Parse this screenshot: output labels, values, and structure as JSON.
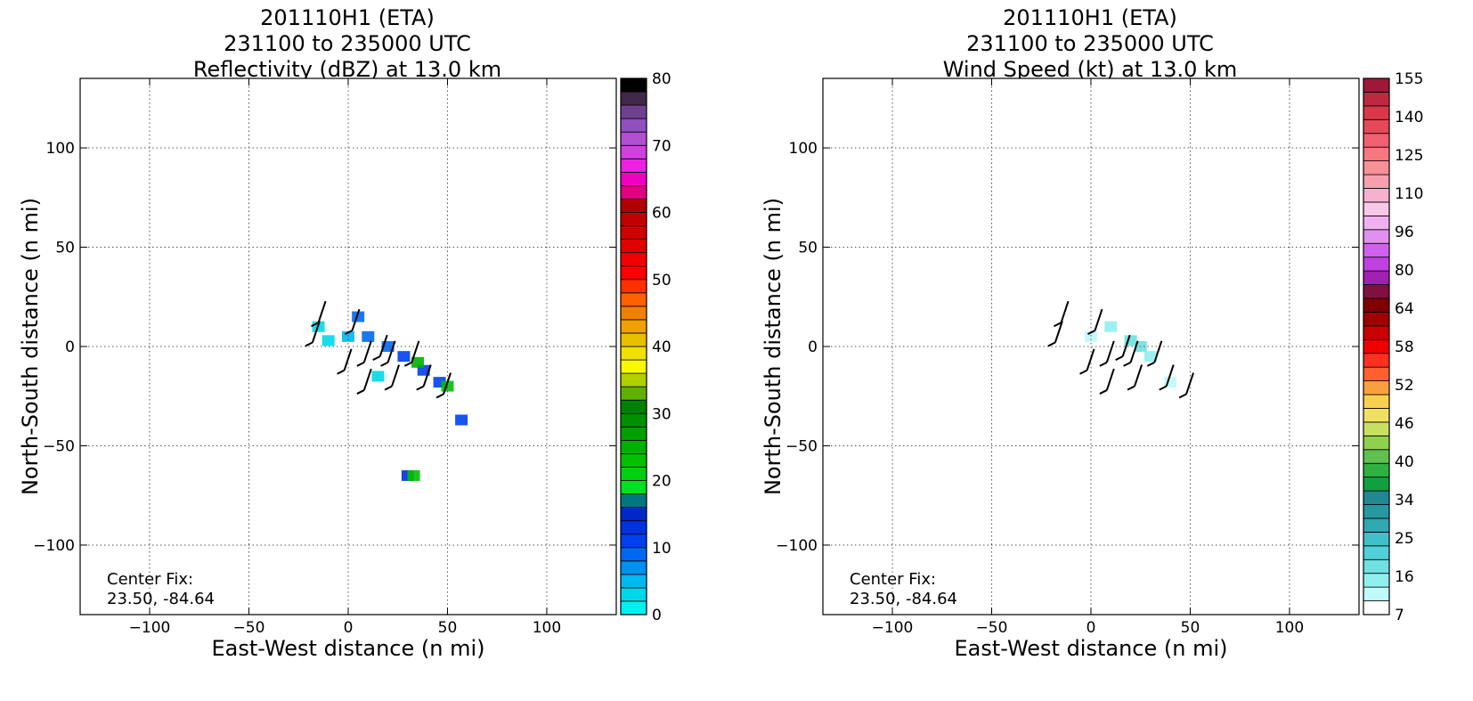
{
  "chart_data": [
    {
      "type": "heatmap",
      "title_lines": [
        "201110H1 (ETA)",
        "231100 to 235000 UTC",
        "Reflectivity (dBZ) at 13.0 km"
      ],
      "xlabel": "East-West distance (n mi)",
      "ylabel": "North-South distance (n mi)",
      "xlim": [
        -135,
        135
      ],
      "ylim": [
        -135,
        135
      ],
      "xticks": [
        -100,
        -50,
        0,
        50,
        100
      ],
      "yticks": [
        -100,
        -50,
        0,
        50,
        100
      ],
      "grid": true,
      "annotation": [
        "Center Fix:",
        "23.50, -84.64"
      ],
      "colorbar": {
        "range": [
          0,
          80
        ],
        "tick_labels": [
          "0",
          "10",
          "20",
          "30",
          "40",
          "50",
          "60",
          "70",
          "80"
        ],
        "colors": [
          "#00f0f0",
          "#00d8e8",
          "#00b8f0",
          "#0090f0",
          "#0068f0",
          "#0040f0",
          "#0030e0",
          "#0028c8",
          "#007880",
          "#00e020",
          "#00d010",
          "#00c000",
          "#00b000",
          "#00a000",
          "#009000",
          "#008000",
          "#60b000",
          "#b0d000",
          "#f8f800",
          "#f0e000",
          "#e8c000",
          "#f0a000",
          "#f08000",
          "#ff6000",
          "#ff3000",
          "#ff0000",
          "#f00000",
          "#e00000",
          "#d00000",
          "#c00000",
          "#b00000",
          "#e00080",
          "#f000c0",
          "#f020e0",
          "#d040e0",
          "#b050d0",
          "#9050c0",
          "#704090",
          "#402848",
          "#000000"
        ]
      },
      "echo_cells": [
        {
          "x": 10,
          "y": 5,
          "v": 9
        },
        {
          "x": 20,
          "y": 0,
          "v": 9
        },
        {
          "x": 28,
          "y": -5,
          "v": 10
        },
        {
          "x": 38,
          "y": -12,
          "v": 10
        },
        {
          "x": 46,
          "y": -18,
          "v": 11
        },
        {
          "x": 50,
          "y": -20,
          "v": 22
        },
        {
          "x": 35,
          "y": -8,
          "v": 25
        },
        {
          "x": 5,
          "y": 15,
          "v": 8
        },
        {
          "x": 0,
          "y": 5,
          "v": 4
        },
        {
          "x": -15,
          "y": 10,
          "v": 2
        },
        {
          "x": -10,
          "y": 3,
          "v": 3
        },
        {
          "x": 15,
          "y": -15,
          "v": 3
        },
        {
          "x": 30,
          "y": -65,
          "v": 12
        },
        {
          "x": 33,
          "y": -65,
          "v": 22
        },
        {
          "x": 57,
          "y": -37,
          "v": 11
        }
      ],
      "wind_barbs": [
        {
          "x": -15,
          "y": 12
        },
        {
          "x": -18,
          "y": 2
        },
        {
          "x": 2,
          "y": 8
        },
        {
          "x": 8,
          "y": -8
        },
        {
          "x": 20,
          "y": -8
        },
        {
          "x": 32,
          "y": -8
        },
        {
          "x": -2,
          "y": -12
        },
        {
          "x": 8,
          "y": -22
        },
        {
          "x": 22,
          "y": -20
        },
        {
          "x": 38,
          "y": -20
        },
        {
          "x": 48,
          "y": -24
        },
        {
          "x": 16,
          "y": -5
        }
      ]
    },
    {
      "type": "heatmap",
      "title_lines": [
        "201110H1 (ETA)",
        "231100 to 235000 UTC",
        "Wind Speed (kt) at 13.0 km"
      ],
      "xlabel": "East-West distance (n mi)",
      "ylabel": "North-South distance (n mi)",
      "xlim": [
        -135,
        135
      ],
      "ylim": [
        -135,
        135
      ],
      "xticks": [
        -100,
        -50,
        0,
        50,
        100
      ],
      "yticks": [
        -100,
        -50,
        0,
        50,
        100
      ],
      "grid": true,
      "annotation": [
        "Center Fix:",
        "23.50, -84.64"
      ],
      "colorbar": {
        "range": [
          7,
          160
        ],
        "tick_labels": [
          "7",
          "16",
          "25",
          "34",
          "40",
          "46",
          "52",
          "58",
          "64",
          "80",
          "96",
          "110",
          "125",
          "140",
          "155"
        ],
        "colors": [
          "#ffffff",
          "#c0fafa",
          "#90f0f0",
          "#70e0e0",
          "#50d0d8",
          "#40c0c8",
          "#30a8b0",
          "#2898a0",
          "#208890",
          "#10a040",
          "#30b040",
          "#60c050",
          "#90d050",
          "#c8e060",
          "#f0e060",
          "#f8d050",
          "#f8a040",
          "#ff6030",
          "#ff3020",
          "#f00000",
          "#c80000",
          "#a00000",
          "#800000",
          "#801040",
          "#a020b0",
          "#c040e0",
          "#d060f0",
          "#e090f0",
          "#f0b0f0",
          "#f8c8e8",
          "#f8b0d0",
          "#f8a0b0",
          "#f89098",
          "#f87880",
          "#f06070",
          "#e84858",
          "#d83848",
          "#c02840",
          "#a01838"
        ]
      },
      "wind_cells": [
        {
          "x": 10,
          "y": 10,
          "v": 18
        },
        {
          "x": 20,
          "y": 3,
          "v": 22
        },
        {
          "x": 25,
          "y": 0,
          "v": 20
        },
        {
          "x": 30,
          "y": -5,
          "v": 17
        },
        {
          "x": 0,
          "y": 5,
          "v": 12
        },
        {
          "x": -15,
          "y": 15,
          "v": 10
        },
        {
          "x": 40,
          "y": -18,
          "v": 12
        },
        {
          "x": 15,
          "y": -12,
          "v": 10
        }
      ],
      "wind_barbs": [
        {
          "x": -15,
          "y": 12
        },
        {
          "x": -18,
          "y": 2
        },
        {
          "x": 2,
          "y": 8
        },
        {
          "x": 8,
          "y": -8
        },
        {
          "x": 20,
          "y": -8
        },
        {
          "x": 32,
          "y": -8
        },
        {
          "x": -2,
          "y": -12
        },
        {
          "x": 8,
          "y": -22
        },
        {
          "x": 22,
          "y": -20
        },
        {
          "x": 38,
          "y": -20
        },
        {
          "x": 48,
          "y": -24
        },
        {
          "x": 16,
          "y": -5
        }
      ]
    }
  ]
}
